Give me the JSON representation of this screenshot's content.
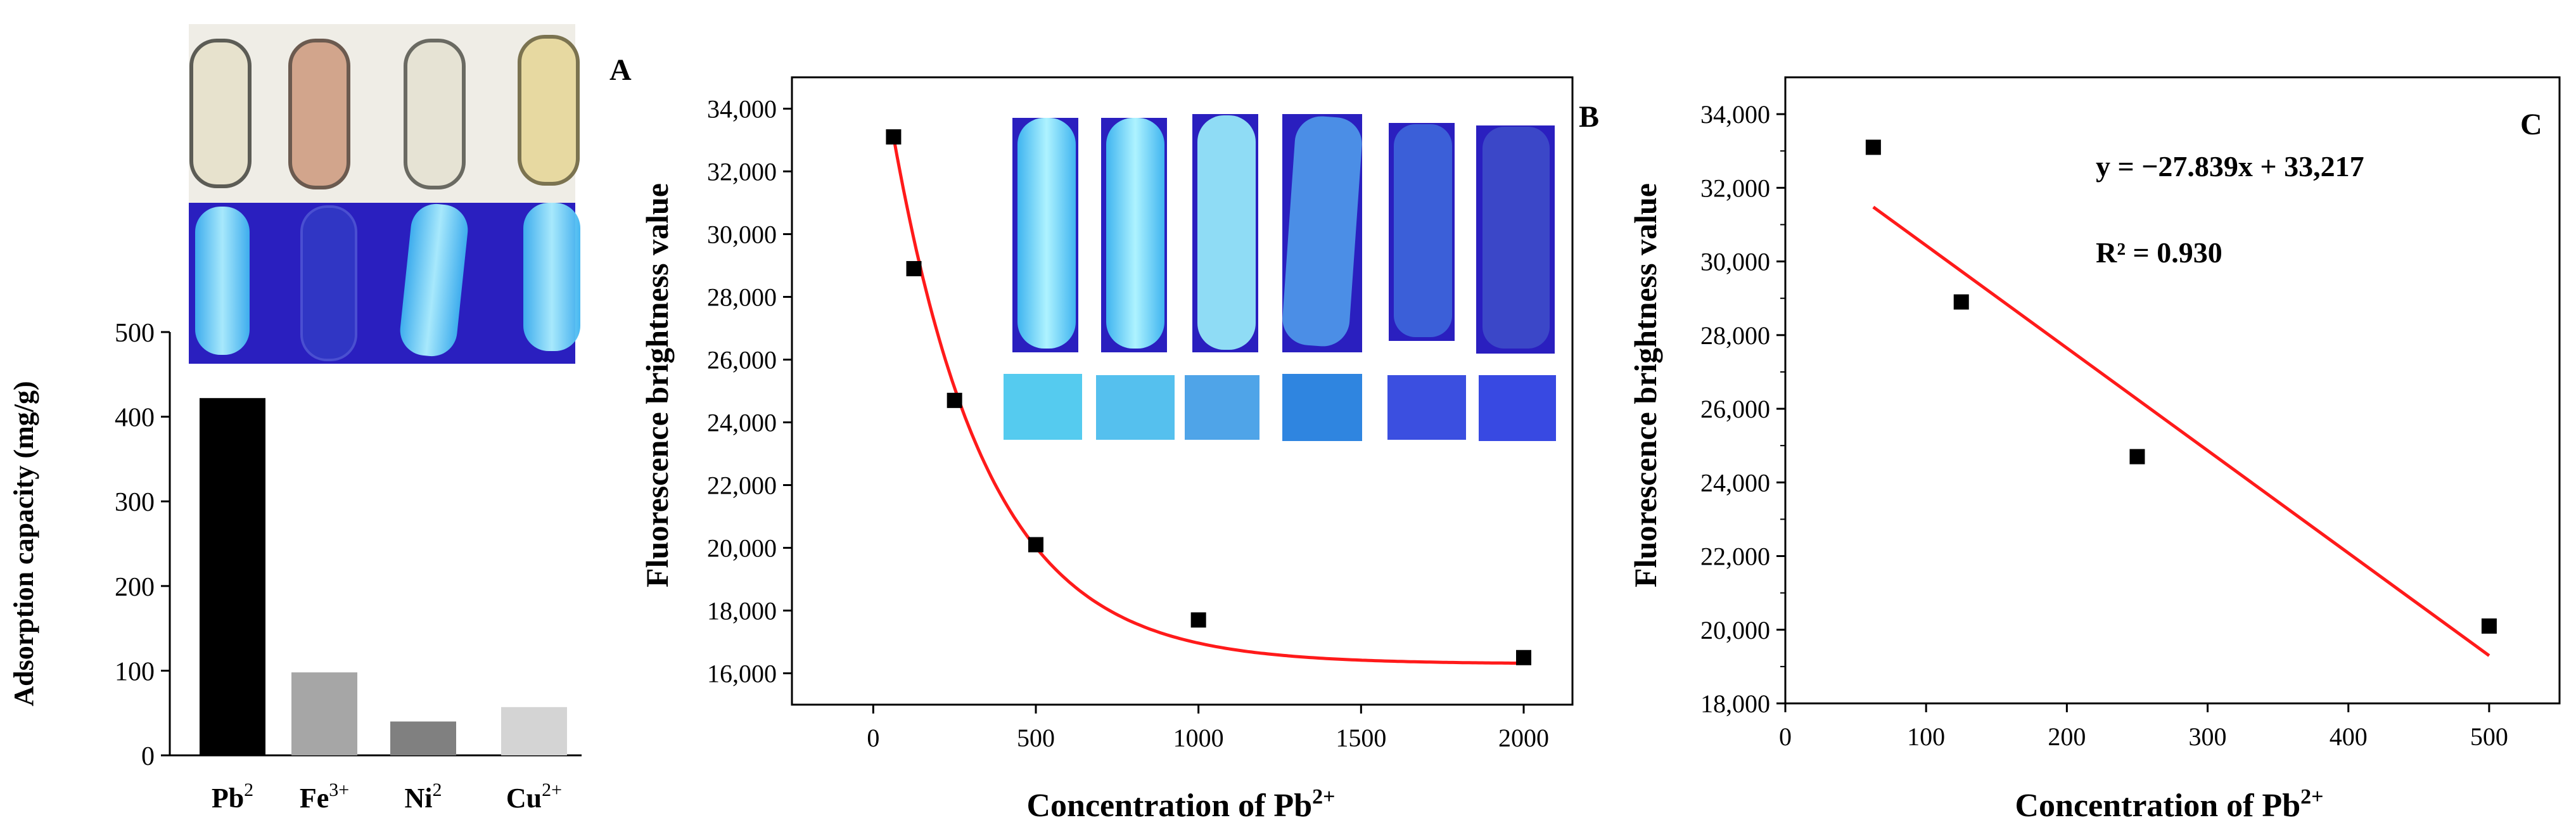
{
  "colors": {
    "fit_line": "#ff1a1a",
    "marker": "#000000",
    "fluor_bright": "#4fd8f5",
    "fluor_dark": "#2b33c9",
    "uv_bg": "#2a1fbf"
  },
  "chart_data": [
    {
      "id": "bar",
      "type": "bar",
      "ylabel": "Adsorption capacity (mg/g)",
      "ylim": [
        0,
        500
      ],
      "yticks": [
        0,
        100,
        200,
        300,
        400,
        500
      ],
      "yticklabels": [
        "0",
        "100",
        "200",
        "300",
        "400",
        "500"
      ],
      "categories": [
        {
          "base": "Pb",
          "sup": "2"
        },
        {
          "base": "Fe",
          "sup": "3+"
        },
        {
          "base": "Ni",
          "sup": "2"
        },
        {
          "base": "Cu",
          "sup": "2+"
        }
      ],
      "values": [
        422,
        98,
        40,
        57
      ],
      "bar_colors": [
        "#000000",
        "#a6a6a6",
        "#808080",
        "#d4d4d4"
      ]
    },
    {
      "id": "B",
      "type": "scatter",
      "panel_label": "A",
      "panel_label_2": "B",
      "xlabel": "Concentration of Pb",
      "xlabel_sup": "2+",
      "ylabel": "Fluorescence brightness value",
      "xlim": [
        -250,
        2150
      ],
      "ylim": [
        15000,
        35000
      ],
      "xticks": [
        0,
        500,
        1000,
        1500,
        2000
      ],
      "xticklabels": [
        "0",
        "500",
        "1000",
        "1500",
        "2000"
      ],
      "yticks": [
        16000,
        18000,
        20000,
        22000,
        24000,
        26000,
        28000,
        30000,
        32000,
        34000
      ],
      "yticklabels": [
        "16,000",
        "18,000",
        "20,000",
        "22,000",
        "24,000",
        "26,000",
        "28,000",
        "30,000",
        "32,000",
        "34,000"
      ],
      "x": [
        62.5,
        125,
        250,
        500,
        1000,
        2000
      ],
      "y": [
        33100,
        28900,
        24700,
        20100,
        17700,
        16500
      ],
      "fit": "exponential decay"
    },
    {
      "id": "C",
      "type": "scatter",
      "panel_label": "C",
      "xlabel": "Concentration of Pb",
      "xlabel_sup": "2+",
      "ylabel": "Fluorescence brightness value",
      "xlim": [
        0,
        550
      ],
      "ylim": [
        18000,
        35000
      ],
      "xticks": [
        0,
        100,
        200,
        300,
        400,
        500
      ],
      "xticklabels": [
        "0",
        "100",
        "200",
        "300",
        "400",
        "500"
      ],
      "yticks": [
        18000,
        20000,
        22000,
        24000,
        26000,
        28000,
        30000,
        32000,
        34000
      ],
      "yticklabels": [
        "18,000",
        "20,000",
        "22,000",
        "24,000",
        "26,000",
        "28,000",
        "30,000",
        "32,000",
        "34,000"
      ],
      "x": [
        62.5,
        125,
        250,
        500
      ],
      "y": [
        33100,
        28900,
        24700,
        20100
      ],
      "fit_slope": -27.839,
      "fit_intercept": 33217,
      "annotations": [
        "y = −27.839x + 33,217",
        "R² = 0.930"
      ]
    }
  ]
}
